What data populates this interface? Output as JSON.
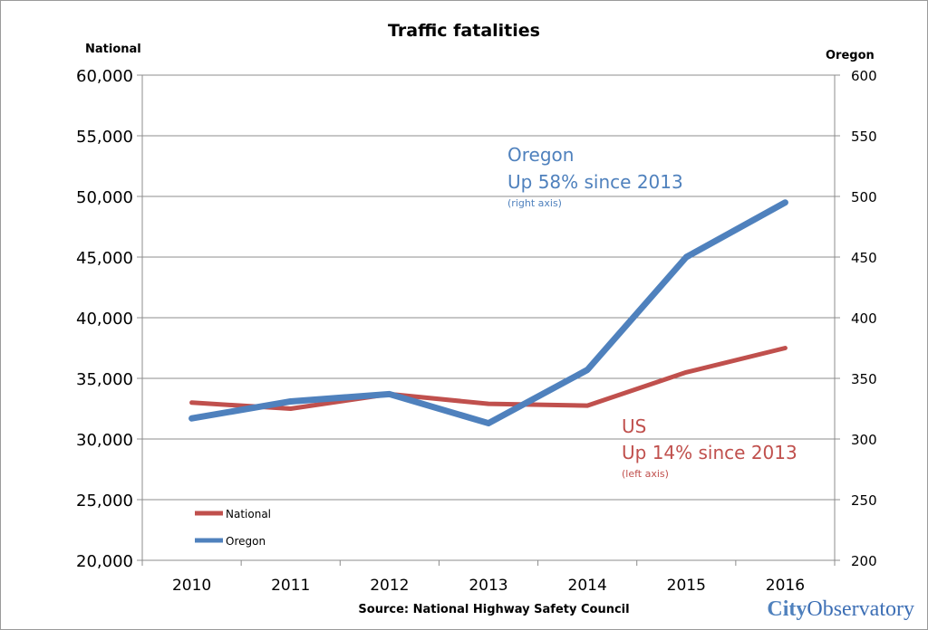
{
  "chart_data": {
    "type": "line",
    "title": "Traffic fatalities",
    "left_axis_label": "National",
    "right_axis_label": "Oregon",
    "categories": [
      "2010",
      "2011",
      "2012",
      "2013",
      "2014",
      "2015",
      "2016"
    ],
    "left_axis": {
      "ylim": [
        20000,
        60000
      ],
      "ticks": [
        20000,
        25000,
        30000,
        35000,
        40000,
        45000,
        50000,
        55000,
        60000
      ],
      "tick_labels": [
        "20,000",
        "25,000",
        "30,000",
        "35,000",
        "40,000",
        "45,000",
        "50,000",
        "55,000",
        "60,000"
      ]
    },
    "right_axis": {
      "ylim": [
        200,
        600
      ],
      "ticks": [
        200,
        250,
        300,
        350,
        400,
        450,
        500,
        550,
        600
      ],
      "tick_labels": [
        "200",
        "250",
        "300",
        "350",
        "400",
        "450",
        "500",
        "550",
        "600"
      ]
    },
    "grid": true,
    "legend_position": "bottom-left",
    "series": [
      {
        "name": "National",
        "axis": "left",
        "color": "#c0504d",
        "values": [
          33000,
          32500,
          33700,
          32900,
          32750,
          35500,
          37500
        ]
      },
      {
        "name": "Oregon",
        "axis": "right",
        "color": "#4f81bd",
        "values": [
          317,
          331,
          337,
          313,
          357,
          450,
          495
        ]
      }
    ],
    "annotations": [
      {
        "id": "oregon",
        "color": "#4f81bd",
        "line1": "Oregon",
        "line2": "Up 58% since 2013",
        "note": "(right axis)"
      },
      {
        "id": "us",
        "color": "#c0504d",
        "line1": "US",
        "line2": "Up 14% since 2013",
        "note": "(left axis)"
      }
    ],
    "source": "Source:  National Highway Safety Council"
  },
  "branding": {
    "logo_part1": "City",
    "logo_part2": "Observatory",
    "color1": "#4f81bd",
    "color2": "#3d6fb5"
  }
}
